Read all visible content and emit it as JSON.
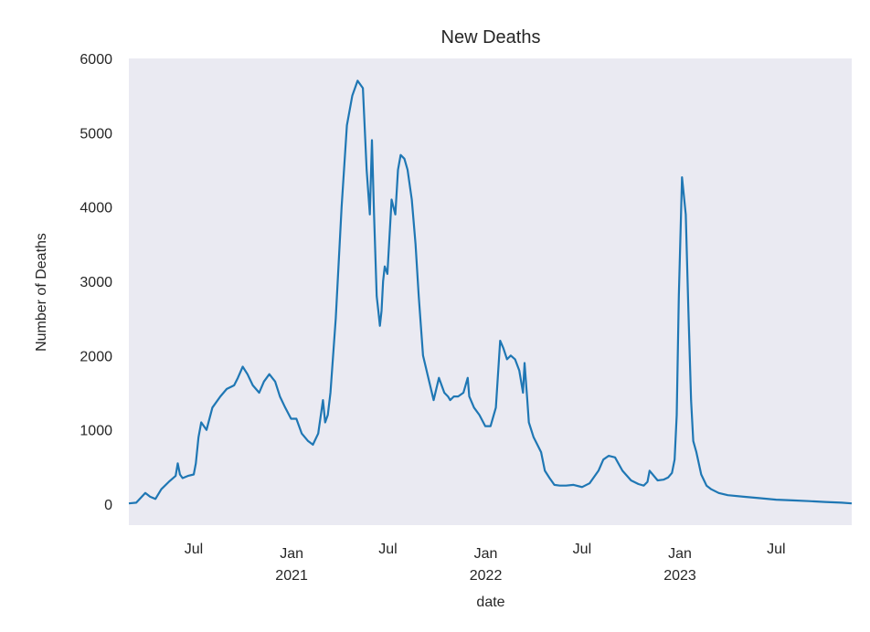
{
  "chart_data": {
    "type": "line",
    "title": "New Deaths",
    "xlabel": "date",
    "ylabel": "Number of Deaths",
    "ylim": [
      0,
      6000
    ],
    "xlim": [
      "2020-03-01",
      "2023-11-20"
    ],
    "grid": false,
    "background_color": "#eaeaf2",
    "line_color": "#1f77b4",
    "y_ticks": [
      {
        "value": 0,
        "label": "0"
      },
      {
        "value": 1000,
        "label": "1000"
      },
      {
        "value": 2000,
        "label": "2000"
      },
      {
        "value": 3000,
        "label": "3000"
      },
      {
        "value": 4000,
        "label": "4000"
      },
      {
        "value": 5000,
        "label": "5000"
      },
      {
        "value": 6000,
        "label": "6000"
      }
    ],
    "x_ticks": [
      {
        "date": "2020-07-01",
        "label": "Jul",
        "year": ""
      },
      {
        "date": "2021-01-01",
        "label": "Jan",
        "year": "2021"
      },
      {
        "date": "2021-07-01",
        "label": "Jul",
        "year": ""
      },
      {
        "date": "2022-01-01",
        "label": "Jan",
        "year": "2022"
      },
      {
        "date": "2022-07-01",
        "label": "Jul",
        "year": ""
      },
      {
        "date": "2023-01-01",
        "label": "Jan",
        "year": "2023"
      },
      {
        "date": "2023-07-01",
        "label": "Jul",
        "year": ""
      }
    ],
    "series": [
      {
        "x": [
          "2020-03-01",
          "2020-03-15",
          "2020-04-01",
          "2020-04-10",
          "2020-04-20",
          "2020-05-01",
          "2020-05-15",
          "2020-05-28",
          "2020-06-01",
          "2020-06-05",
          "2020-06-10",
          "2020-06-20",
          "2020-07-01",
          "2020-07-05",
          "2020-07-10",
          "2020-07-15",
          "2020-07-25",
          "2020-08-05",
          "2020-08-20",
          "2020-09-01",
          "2020-09-15",
          "2020-09-22",
          "2020-10-01",
          "2020-10-10",
          "2020-10-20",
          "2020-11-01",
          "2020-11-10",
          "2020-11-20",
          "2020-12-01",
          "2020-12-10",
          "2020-12-20",
          "2020-12-31",
          "2021-01-10",
          "2021-01-20",
          "2021-02-01",
          "2021-02-10",
          "2021-02-20",
          "2021-03-01",
          "2021-03-05",
          "2021-03-10",
          "2021-03-15",
          "2021-03-25",
          "2021-04-05",
          "2021-04-15",
          "2021-04-25",
          "2021-05-05",
          "2021-05-15",
          "2021-05-22",
          "2021-05-28",
          "2021-06-01",
          "2021-06-05",
          "2021-06-10",
          "2021-06-13",
          "2021-06-16",
          "2021-06-19",
          "2021-06-22",
          "2021-06-25",
          "2021-06-30",
          "2021-07-08",
          "2021-07-15",
          "2021-07-20",
          "2021-07-25",
          "2021-08-01",
          "2021-08-07",
          "2021-08-15",
          "2021-08-22",
          "2021-08-28",
          "2021-09-05",
          "2021-09-15",
          "2021-09-25",
          "2021-10-05",
          "2021-10-15",
          "2021-10-22",
          "2021-10-26",
          "2021-11-02",
          "2021-11-10",
          "2021-11-20",
          "2021-11-28",
          "2021-12-01",
          "2021-12-10",
          "2021-12-20",
          "2021-12-31",
          "2022-01-10",
          "2022-01-20",
          "2022-01-28",
          "2022-02-03",
          "2022-02-10",
          "2022-02-17",
          "2022-02-25",
          "2022-03-05",
          "2022-03-12",
          "2022-03-15",
          "2022-03-20",
          "2022-03-23",
          "2022-04-01",
          "2022-04-08",
          "2022-04-15",
          "2022-04-22",
          "2022-05-01",
          "2022-05-10",
          "2022-05-20",
          "2022-06-01",
          "2022-06-15",
          "2022-07-01",
          "2022-07-15",
          "2022-08-01",
          "2022-08-10",
          "2022-08-20",
          "2022-09-01",
          "2022-09-15",
          "2022-10-01",
          "2022-10-15",
          "2022-10-25",
          "2022-11-01",
          "2022-11-05",
          "2022-11-20",
          "2022-12-01",
          "2022-12-10",
          "2022-12-17",
          "2022-12-22",
          "2022-12-26",
          "2022-12-30",
          "2023-01-05",
          "2023-01-12",
          "2023-01-17",
          "2023-01-22",
          "2023-01-26",
          "2023-02-01",
          "2023-02-10",
          "2023-02-20",
          "2023-03-01",
          "2023-03-15",
          "2023-04-01",
          "2023-05-01",
          "2023-06-01",
          "2023-07-01",
          "2023-08-01",
          "2023-09-01",
          "2023-10-01",
          "2023-11-01",
          "2023-11-20"
        ],
        "y": [
          10,
          20,
          150,
          100,
          70,
          200,
          300,
          380,
          550,
          400,
          350,
          380,
          400,
          550,
          900,
          1100,
          1000,
          1300,
          1450,
          1550,
          1600,
          1700,
          1850,
          1750,
          1600,
          1500,
          1650,
          1750,
          1650,
          1450,
          1300,
          1150,
          1150,
          950,
          850,
          800,
          950,
          1400,
          1100,
          1200,
          1500,
          2500,
          4000,
          5100,
          5500,
          5700,
          5600,
          4500,
          3900,
          4900,
          3900,
          2800,
          2600,
          2400,
          2600,
          3000,
          3200,
          3100,
          4100,
          3900,
          4500,
          4700,
          4650,
          4500,
          4100,
          3500,
          2800,
          2000,
          1700,
          1400,
          1700,
          1500,
          1450,
          1400,
          1450,
          1450,
          1500,
          1700,
          1450,
          1300,
          1200,
          1050,
          1050,
          1300,
          2200,
          2100,
          1950,
          2000,
          1950,
          1800,
          1500,
          1900,
          1400,
          1100,
          900,
          800,
          700,
          450,
          350,
          260,
          250,
          250,
          260,
          230,
          280,
          450,
          600,
          650,
          630,
          450,
          320,
          270,
          250,
          300,
          450,
          320,
          330,
          360,
          420,
          600,
          1200,
          2800,
          4400,
          3900,
          2600,
          1400,
          850,
          700,
          400,
          250,
          200,
          150,
          120,
          100,
          80,
          60,
          50,
          40,
          30,
          20,
          10
        ]
      }
    ]
  }
}
